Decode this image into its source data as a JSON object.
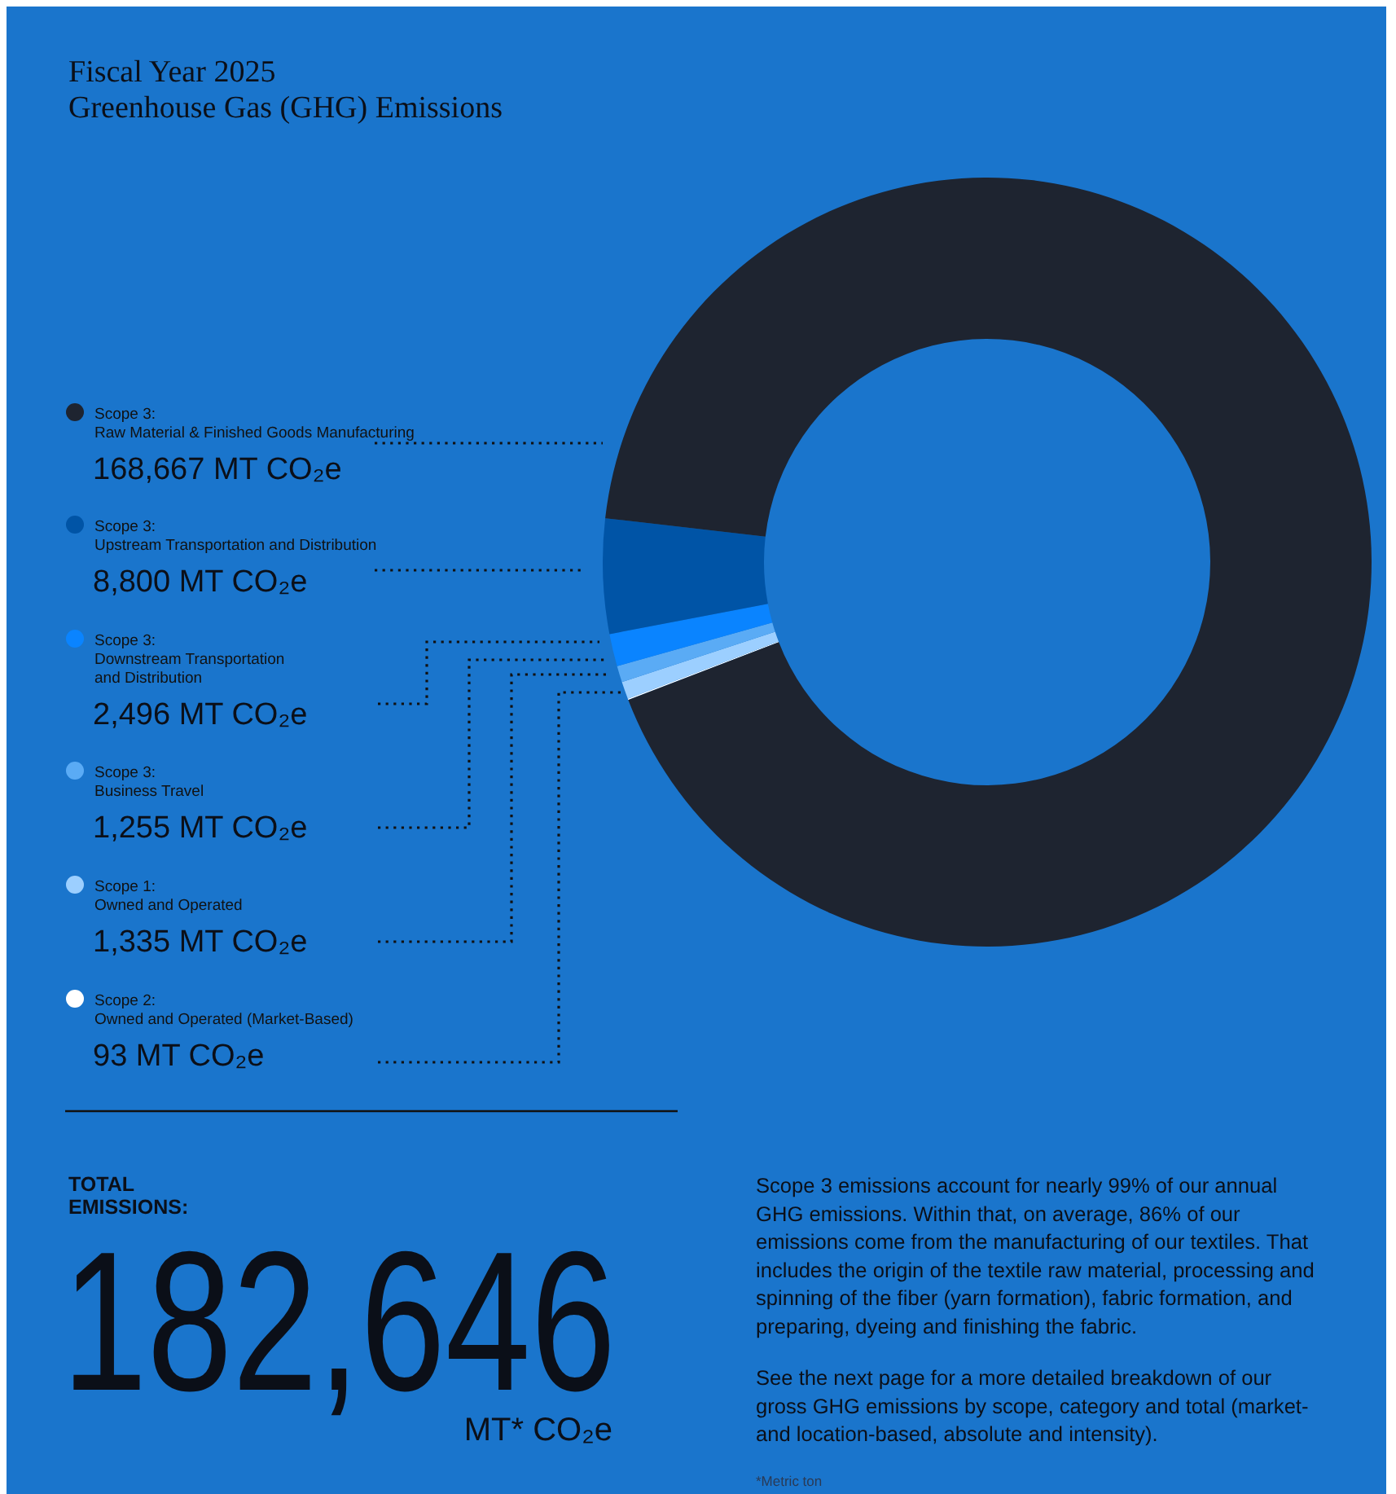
{
  "chart_data": {
    "type": "donut",
    "title": "Fiscal Year 2025\nGreenhouse Gas (GHG) Emissions",
    "categories": [
      "Scope 3:\nRaw Material  & Finished Goods Manufacturing",
      "Scope 3:\nUpstream Transportation and Distribution",
      "Scope 3:\nDownstream Transportation\nand Distribution",
      "Scope 3:\nBusiness Travel",
      "Scope 1:\nOwned and Operated",
      "Scope 2:\nOwned and Operated (Market-Based)"
    ],
    "values": [
      168667,
      8800,
      2496,
      1255,
      1335,
      93
    ],
    "colors": [
      "#1e2430",
      "#0054a6",
      "#0a84ff",
      "#5aabf5",
      "#9ccfff",
      "#ffffff"
    ],
    "value_labels": [
      "168,667 MT CO₂e",
      "8,800 MT CO₂e",
      "2,496 MT CO₂e",
      "1,255 MT CO₂e",
      "1,335 MT CO₂e",
      "93 MT CO₂e"
    ],
    "legend": "left",
    "annotations": [
      "TOTAL\nEMISSIONS:",
      "182,646",
      "MT* CO₂e",
      "Scope 3 emissions account for nearly 99% of our annual\nGHG emissions. Within that, on average, 86% of our\nemissions come from the manufacturing of our textiles. That\nincludes the origin of the textile raw material, processing and\nspinning of the fiber (yarn formation), fabric formation, and\npreparing, dyeing and finishing the fabric.",
      "See the next page for a more detailed breakdown of our\ngross GHG emissions by scope, category and total (market-\nand location-based, absolute and intensity).",
      "*Metric ton"
    ]
  }
}
